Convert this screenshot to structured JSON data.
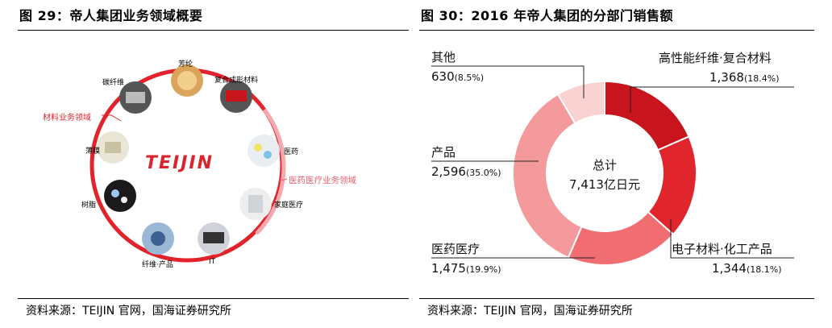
{
  "left": {
    "title": "图 29：帝人集团业务领域概要",
    "logo": "TEIJIN",
    "materials_label": "材料业务领域",
    "healthcare_label": "医药医疗业务领域",
    "nodes": [
      "芳纶",
      "复合成形材料",
      "医药",
      "家庭医疗",
      "IT",
      "纤维·产品",
      "树脂",
      "薄膜",
      "碳纤维"
    ],
    "source": "资料来源：TEIJIN 官网，国海证券研究所"
  },
  "right": {
    "title": "图 30：2016 年帝人集团的分部门销售额",
    "center_line1": "总计",
    "center_line2": "7,413亿日元",
    "source": "资料来源：TEIJIN 官网，国海证券研究所",
    "labels": [
      {
        "name": "高性能纤维·复合材料",
        "value": "1,368",
        "pct": "(18.4%)"
      },
      {
        "name": "电子材料·化工产品",
        "value": "1,344",
        "pct": "(18.1%)"
      },
      {
        "name": "医药医疗",
        "value": "1,475",
        "pct": "(19.9%)"
      },
      {
        "name": "产品",
        "value": "2,596",
        "pct": "(35.0%)"
      },
      {
        "name": "其他",
        "value": "630",
        "pct": "(8.5%)"
      }
    ]
  },
  "chart_data": {
    "type": "pie",
    "title": "2016 年帝人集团的分部门销售额",
    "categories": [
      "高性能纤维·复合材料",
      "电子材料·化工产品",
      "医药医疗",
      "产品",
      "其他"
    ],
    "values": [
      1368,
      1344,
      1475,
      2596,
      630
    ],
    "percent": [
      18.4,
      18.1,
      19.9,
      35.0,
      8.5
    ],
    "colors": [
      "#c8141c",
      "#e0252c",
      "#f06e72",
      "#f49a9c",
      "#fad2d2"
    ]
  }
}
